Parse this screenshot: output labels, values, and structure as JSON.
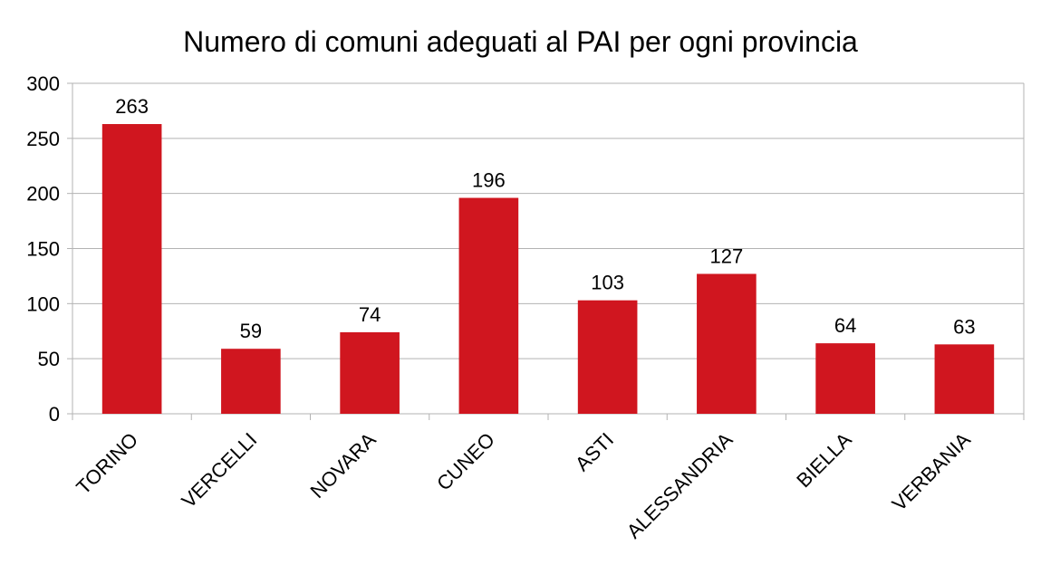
{
  "chart_data": {
    "type": "bar",
    "title": "Numero di comuni adeguati al PAI per ogni provincia",
    "categories": [
      "TORINO",
      "VERCELLI",
      "NOVARA",
      "CUNEO",
      "ASTI",
      "ALESSANDRIA",
      "BIELLA",
      "VERBANIA"
    ],
    "values": [
      263,
      59,
      74,
      196,
      103,
      127,
      64,
      63
    ],
    "data_labels": [
      "263",
      "59",
      "74",
      "196",
      "103",
      "127",
      "64",
      "63"
    ],
    "yticks": [
      "0",
      "50",
      "100",
      "150",
      "200",
      "250",
      "300"
    ],
    "ylim": [
      0,
      300
    ],
    "grid": true,
    "legend": "none",
    "bar_color": "#d0161f"
  }
}
